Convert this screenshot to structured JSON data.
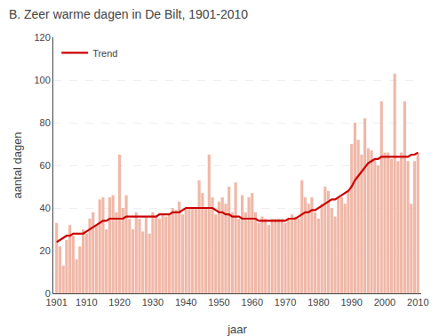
{
  "chart_data": {
    "type": "bar",
    "title": "B. Zeer warme dagen in De Bilt, 1901-2010",
    "xlabel": "jaar",
    "ylabel": "aantal dagen",
    "x": [
      1901,
      1902,
      1903,
      1904,
      1905,
      1906,
      1907,
      1908,
      1909,
      1910,
      1911,
      1912,
      1913,
      1914,
      1915,
      1916,
      1917,
      1918,
      1919,
      1920,
      1921,
      1922,
      1923,
      1924,
      1925,
      1926,
      1927,
      1928,
      1929,
      1930,
      1931,
      1932,
      1933,
      1934,
      1935,
      1936,
      1937,
      1938,
      1939,
      1940,
      1941,
      1942,
      1943,
      1944,
      1945,
      1946,
      1947,
      1948,
      1949,
      1950,
      1951,
      1952,
      1953,
      1954,
      1955,
      1956,
      1957,
      1958,
      1959,
      1960,
      1961,
      1962,
      1963,
      1964,
      1965,
      1966,
      1967,
      1968,
      1969,
      1970,
      1971,
      1972,
      1973,
      1974,
      1975,
      1976,
      1977,
      1978,
      1979,
      1980,
      1981,
      1982,
      1983,
      1984,
      1985,
      1986,
      1987,
      1988,
      1989,
      1990,
      1991,
      1992,
      1993,
      1994,
      1995,
      1996,
      1997,
      1998,
      1999,
      2000,
      2001,
      2002,
      2003,
      2004,
      2005,
      2006,
      2007,
      2008,
      2009,
      2010
    ],
    "series": [
      {
        "type": "bar",
        "color": "#f0b8a8",
        "values": [
          33,
          22,
          13,
          25,
          32,
          27,
          16,
          22,
          30,
          28,
          35,
          38,
          32,
          44,
          45,
          30,
          45,
          46,
          38,
          65,
          40,
          46,
          35,
          30,
          38,
          35,
          29,
          36,
          28,
          38,
          36,
          35,
          37,
          36,
          37,
          40,
          39,
          43,
          37,
          40,
          40,
          40,
          40,
          53,
          47,
          40,
          65,
          45,
          37,
          43,
          45,
          42,
          50,
          38,
          52,
          35,
          46,
          38,
          45,
          47,
          38,
          33,
          36,
          35,
          32,
          35,
          35,
          35,
          35,
          33,
          35,
          37,
          36,
          35,
          53,
          45,
          42,
          45,
          38,
          35,
          42,
          50,
          48,
          40,
          36,
          45,
          45,
          42,
          48,
          70,
          80,
          72,
          65,
          82,
          68,
          67,
          63,
          60,
          90,
          66,
          66,
          63,
          103,
          62,
          66,
          90,
          62,
          42,
          62,
          66
        ]
      },
      {
        "name": "Trend",
        "type": "line",
        "color": "#cc0000",
        "values": [
          24,
          25,
          26,
          27,
          27,
          28,
          28,
          28,
          28,
          29,
          30,
          31,
          32,
          33,
          34,
          34,
          35,
          35,
          35,
          35,
          35,
          36,
          36,
          36,
          36,
          36,
          36,
          36,
          36,
          36,
          36,
          37,
          37,
          37,
          37,
          38,
          38,
          38,
          39,
          40,
          40,
          40,
          40,
          40,
          40,
          40,
          40,
          40,
          39,
          38,
          38,
          37,
          37,
          36,
          36,
          36,
          35,
          35,
          35,
          35,
          35,
          34,
          34,
          34,
          34,
          34,
          34,
          34,
          34,
          34,
          35,
          35,
          35,
          36,
          37,
          38,
          38,
          39,
          39,
          40,
          41,
          42,
          43,
          44,
          44,
          45,
          46,
          47,
          48,
          50,
          53,
          55,
          57,
          59,
          61,
          62,
          63,
          63,
          64,
          64,
          64,
          64,
          64,
          64,
          64,
          64,
          64,
          65,
          65,
          66
        ]
      }
    ],
    "xlim": [
      1900,
      2011
    ],
    "xticks": [
      1901,
      1910,
      1920,
      1930,
      1940,
      1950,
      1960,
      1970,
      1980,
      1990,
      2000,
      2010
    ],
    "ylim": [
      0,
      120
    ],
    "yticks": [
      0,
      20,
      40,
      60,
      80,
      100,
      120
    ],
    "grid": true,
    "legend": "upper left"
  }
}
